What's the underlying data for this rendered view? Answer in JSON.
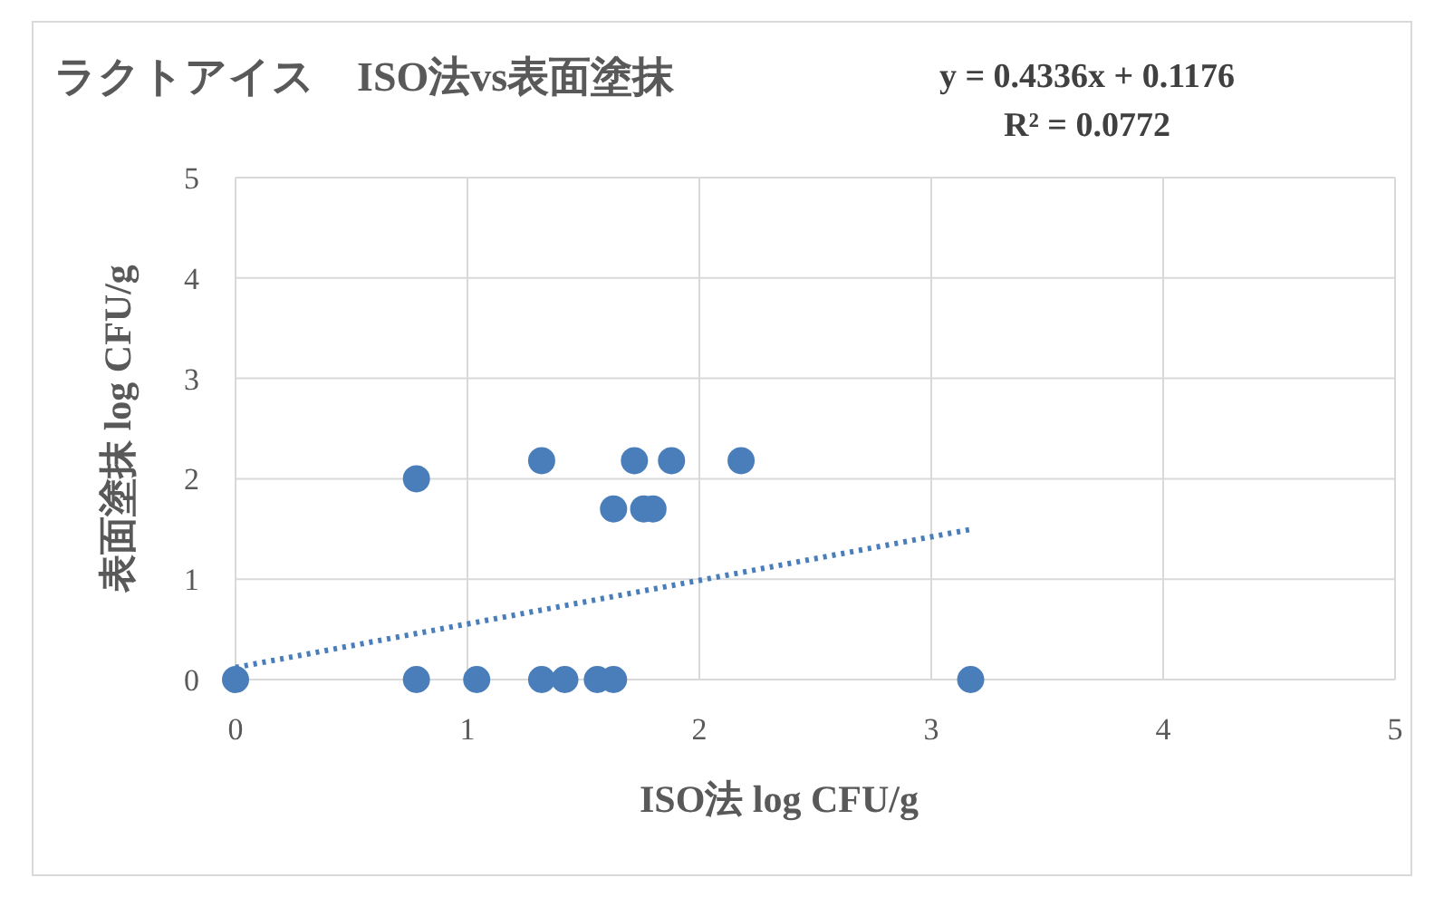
{
  "chart_data": {
    "type": "scatter",
    "title": "ラクトアイス　ISO法vs表面塗抹",
    "xlabel": "ISO法 log CFU/g",
    "ylabel": "表面塗抹 log CFU/g",
    "annotations": [
      "y = 0.4336x + 0.1176",
      "R² = 0.0772"
    ],
    "xlim": [
      0,
      5
    ],
    "xticks": [
      0,
      1,
      2,
      3,
      4,
      5
    ],
    "ylim": [
      0,
      5
    ],
    "yticks": [
      0,
      1,
      2,
      3,
      4,
      5
    ],
    "grid": true,
    "series": [
      {
        "marker": "circle",
        "color": "#4a7ebb",
        "x": [
          0,
          0.78,
          0.78,
          1.04,
          1.32,
          1.32,
          1.42,
          1.56,
          1.63,
          1.63,
          1.72,
          1.76,
          1.8,
          1.88,
          2.18,
          3.17
        ],
        "values": [
          0,
          2.0,
          0,
          0,
          2.18,
          0,
          0,
          0,
          0,
          1.7,
          2.18,
          1.7,
          1.7,
          2.18,
          2.18,
          0
        ]
      },
      {
        "type": "line",
        "color": "#4a7ebb",
        "line_style": "dotted",
        "x": [
          0,
          3.18
        ],
        "values": [
          0.12,
          1.5
        ]
      }
    ]
  }
}
